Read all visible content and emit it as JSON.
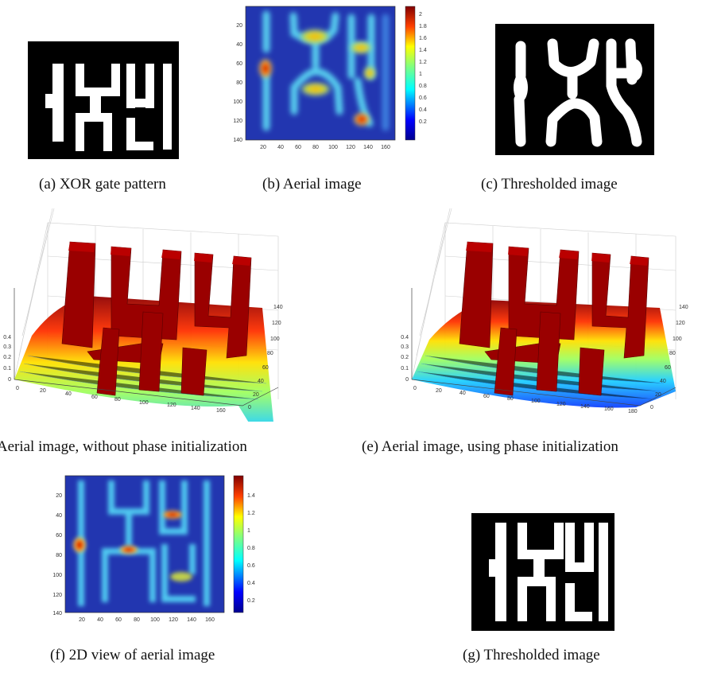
{
  "figure": {
    "captions": {
      "a": "(a) XOR gate pattern",
      "b": "(b) Aerial image",
      "c": "(c) Thresholded image",
      "d": "(d) Aerial image, without phase initialization",
      "e": "(e) Aerial image, using phase initialization",
      "f": "(f) 2D view of aerial image",
      "g": "(g) Thresholded image"
    }
  },
  "chart_data": [
    {
      "id": "b",
      "type": "heatmap",
      "title": "",
      "x_ticks": [
        "20",
        "40",
        "60",
        "80",
        "100",
        "120",
        "140",
        "160"
      ],
      "y_ticks": [
        "20",
        "40",
        "60",
        "80",
        "100",
        "120",
        "140"
      ],
      "colorbar_ticks": [
        "2",
        "1.8",
        "1.6",
        "1.4",
        "1.2",
        "1",
        "0.8",
        "0.6",
        "0.4",
        "0.2"
      ],
      "xlim": [
        0,
        170
      ],
      "ylim": [
        0,
        140
      ]
    },
    {
      "id": "d",
      "type": "area",
      "title": "",
      "x_ticks": [
        "0",
        "20",
        "40",
        "60",
        "80",
        "100",
        "120",
        "140",
        "160"
      ],
      "y_ticks": [
        "0",
        "20",
        "40",
        "60",
        "80",
        "100",
        "120",
        "140"
      ],
      "z_ticks": [
        "0",
        "0.1",
        "0.2",
        "0.3",
        "0.4"
      ]
    },
    {
      "id": "e",
      "type": "area",
      "title": "",
      "x_ticks": [
        "0",
        "20",
        "40",
        "60",
        "80",
        "100",
        "120",
        "140",
        "160",
        "180"
      ],
      "y_ticks": [
        "0",
        "20",
        "40",
        "60",
        "80",
        "100",
        "120",
        "140"
      ],
      "z_ticks": [
        "0",
        "0.1",
        "0.2",
        "0.3",
        "0.4"
      ]
    },
    {
      "id": "f",
      "type": "heatmap",
      "title": "",
      "x_ticks": [
        "20",
        "40",
        "60",
        "80",
        "100",
        "120",
        "140",
        "160"
      ],
      "y_ticks": [
        "20",
        "40",
        "60",
        "80",
        "100",
        "120",
        "140"
      ],
      "colorbar_ticks": [
        "1.4",
        "1.2",
        "1",
        "0.8",
        "0.6",
        "0.4",
        "0.2"
      ],
      "xlim": [
        0,
        170
      ],
      "ylim": [
        0,
        140
      ]
    }
  ]
}
